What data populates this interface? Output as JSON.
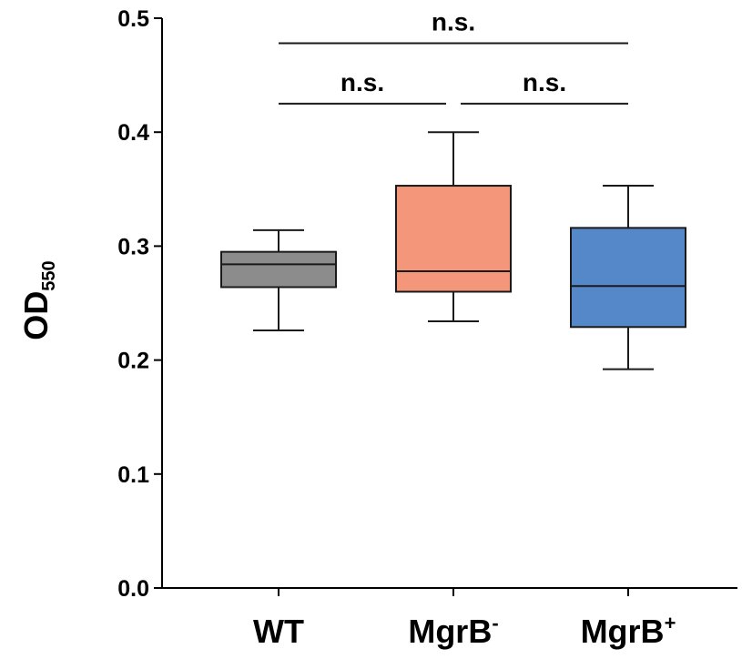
{
  "chart_data": {
    "type": "box",
    "ylabel_main": "OD",
    "ylabel_sub": "550",
    "ylim": [
      0,
      0.5
    ],
    "yticks": [
      "0.0",
      "0.1",
      "0.2",
      "0.3",
      "0.4",
      "0.5"
    ],
    "grid": false,
    "categories": [
      {
        "name": "WT",
        "sup": ""
      },
      {
        "name": "MgrB",
        "sup": "-"
      },
      {
        "name": "MgrB",
        "sup": "+"
      }
    ],
    "boxes": [
      {
        "min": 0.226,
        "q1": 0.264,
        "median": 0.284,
        "q3": 0.295,
        "max": 0.314,
        "color": "#8c8c8c"
      },
      {
        "min": 0.234,
        "q1": 0.26,
        "median": 0.278,
        "q3": 0.353,
        "max": 0.4,
        "color": "#f4967a"
      },
      {
        "min": 0.192,
        "q1": 0.229,
        "median": 0.265,
        "q3": 0.316,
        "max": 0.353,
        "color": "#5588c8"
      }
    ],
    "significance": [
      {
        "from": 0,
        "to": 1,
        "y": 0.425,
        "label": "n.s."
      },
      {
        "from": 1,
        "to": 2,
        "y": 0.425,
        "label": "n.s."
      },
      {
        "from": 0,
        "to": 2,
        "y": 0.478,
        "label": "n.s."
      }
    ]
  }
}
